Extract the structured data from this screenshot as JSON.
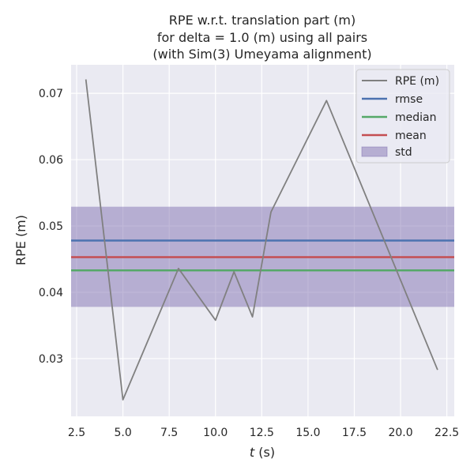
{
  "chart_data": {
    "type": "line",
    "title_lines": [
      "RPE w.r.t. translation part (m)",
      "for delta = 1.0 (m) using all pairs",
      "(with Sim(3) Umeyama alignment)"
    ],
    "xlabel_italic": "t",
    "xlabel_rest": " (s)",
    "ylabel": "RPE (m)",
    "xlim": [
      2.2,
      22.9
    ],
    "ylim": [
      0.0213,
      0.0743
    ],
    "xticks": [
      2.5,
      5.0,
      7.5,
      10.0,
      12.5,
      15.0,
      17.5,
      20.0,
      22.5
    ],
    "xtick_labels": [
      "2.5",
      "5.0",
      "7.5",
      "10.0",
      "12.5",
      "15.0",
      "17.5",
      "20.0",
      "22.5"
    ],
    "yticks": [
      0.03,
      0.04,
      0.05,
      0.06,
      0.07
    ],
    "ytick_labels": [
      "0.03",
      "0.04",
      "0.05",
      "0.06",
      "0.07"
    ],
    "grid": true,
    "legend_position": "top-right",
    "series": [
      {
        "name": "RPE (m)",
        "color": "#808080",
        "x": [
          3,
          5,
          8,
          10,
          11,
          12,
          13,
          16,
          22
        ],
        "y": [
          0.0721,
          0.0238,
          0.0436,
          0.0358,
          0.0431,
          0.0363,
          0.0521,
          0.0689,
          0.0283
        ]
      }
    ],
    "rmse": {
      "name": "rmse",
      "value": 0.0478,
      "color": "#4c72b0"
    },
    "median": {
      "name": "median",
      "value": 0.0433,
      "color": "#55a868"
    },
    "mean": {
      "name": "mean",
      "value": 0.0453,
      "color": "#c44e52"
    },
    "std": {
      "name": "std",
      "lower": 0.0378,
      "upper": 0.0529,
      "color": "#8172b2"
    }
  }
}
